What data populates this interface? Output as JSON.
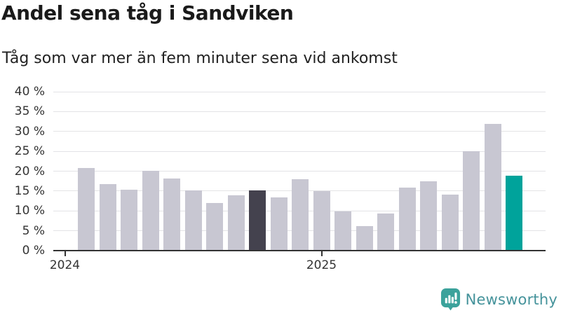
{
  "chart_data": {
    "type": "bar",
    "title": "Andel sena tåg i Sandviken",
    "subtitle": "Tåg som var mer än fem minuter sena vid ankomst",
    "unit": "percent",
    "categories": [
      "2024-02",
      "2024-03",
      "2024-04",
      "2024-05",
      "2024-06",
      "2024-07",
      "2024-08",
      "2024-09",
      "2024-10",
      "2024-11",
      "2024-12",
      "2025-01",
      "2025-02",
      "2025-03",
      "2025-04",
      "2025-05",
      "2025-06",
      "2025-07",
      "2025-08",
      "2025-09",
      "2025-10"
    ],
    "values": [
      20.8,
      16.8,
      15.3,
      20.1,
      18.2,
      15.2,
      12.0,
      14.0,
      15.2,
      13.4,
      18.0,
      15.0,
      9.8,
      6.2,
      9.3,
      15.8,
      17.4,
      14.1,
      25.1,
      31.9,
      18.8
    ],
    "highlight_previous_index": 8,
    "highlight_current_index": 20,
    "ylim": [
      0,
      40
    ],
    "ytick_step": 5,
    "ytick_suffix": " %",
    "xticks": [
      {
        "label": "2024",
        "slot": -1
      },
      {
        "label": "2025",
        "slot": 11
      }
    ],
    "grid": true,
    "legend": "none",
    "colors": {
      "bar_default": "#c8c7d2",
      "bar_highlight_previous": "#44424e",
      "bar_highlight_current": "#00a39b",
      "gridline": "#e3e3e6",
      "axis": "#333333",
      "text": "#333333"
    }
  },
  "branding": {
    "wordmark": "Newsworthy",
    "logo_icon": "newsworthy-speech-bubble-chart-icon",
    "logo_color": "#3ba29b",
    "wordmark_color": "#45939b"
  }
}
